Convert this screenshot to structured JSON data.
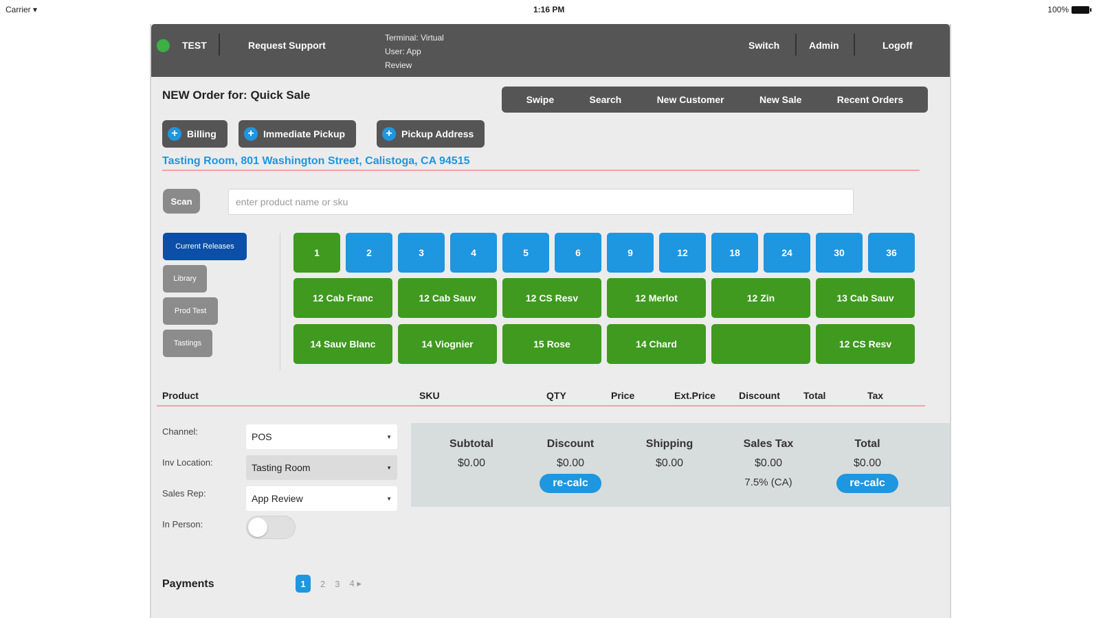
{
  "status_bar": {
    "carrier": "Carrier ",
    "wifi_icon": "wifi-icon",
    "time": "1:16 PM",
    "battery": "100%"
  },
  "topbar": {
    "env": "TEST",
    "request_support": "Request Support",
    "terminal_lines": [
      "Terminal: Virtual",
      "User: App",
      "Review"
    ],
    "switch": "Switch",
    "admin": "Admin",
    "logoff": "Logoff",
    "status_color": "#3cb043"
  },
  "order": {
    "title": "NEW Order for: Quick Sale"
  },
  "actions": [
    "Swipe",
    "Search",
    "New Customer",
    "New Sale",
    "Recent Orders"
  ],
  "pills": {
    "billing": "Billing",
    "pickup": "Immediate Pickup",
    "pickup_address": "Pickup Address"
  },
  "address": "Tasting Room, 801 Washington Street, Calistoga, CA 94515",
  "scan": {
    "label": "Scan",
    "placeholder": "enter product name or sku"
  },
  "categories": [
    "Current Releases",
    "Library",
    "Prod Test",
    "Tastings"
  ],
  "quantities": [
    "1",
    "2",
    "3",
    "4",
    "5",
    "6",
    "9",
    "12",
    "18",
    "24",
    "30",
    "36"
  ],
  "wines_row1": [
    "12 Cab Franc",
    "12 Cab Sauv",
    "12 CS Resv",
    "12 Merlot",
    "12 Zin",
    "13 Cab Sauv"
  ],
  "wines_row2": [
    "14 Sauv Blanc",
    "14 Viognier",
    "15 Rose",
    "14 Chard",
    "",
    "12 CS Resv"
  ],
  "table_headers": {
    "product": "Product",
    "sku": "SKU",
    "qty": "QTY",
    "price": "Price",
    "ext_price": "Ext.Price",
    "discount": "Discount",
    "total": "Total",
    "tax": "Tax"
  },
  "form": {
    "channel_label": "Channel:",
    "channel_value": "POS",
    "inv_label": "Inv Location:",
    "inv_value": "Tasting Room",
    "rep_label": "Sales Rep:",
    "rep_value": "App Review",
    "in_person_label": "In Person:"
  },
  "totals": {
    "subtotal_label": "Subtotal",
    "subtotal": "$0.00",
    "discount_label": "Discount",
    "discount": "$0.00",
    "shipping_label": "Shipping",
    "shipping": "$0.00",
    "tax_label": "Sales Tax",
    "tax": "$0.00",
    "tax_note": "7.5% (CA)",
    "total_label": "Total",
    "total": "$0.00",
    "recalc": "re-calc"
  },
  "payments": {
    "label": "Payments",
    "pages": [
      "1",
      "2",
      "3",
      "4"
    ],
    "next": "▸"
  },
  "colors": {
    "accent": "#1e96e0",
    "green": "#3f9a1f",
    "dark": "#555555",
    "active_category": "#0b4fa8"
  }
}
